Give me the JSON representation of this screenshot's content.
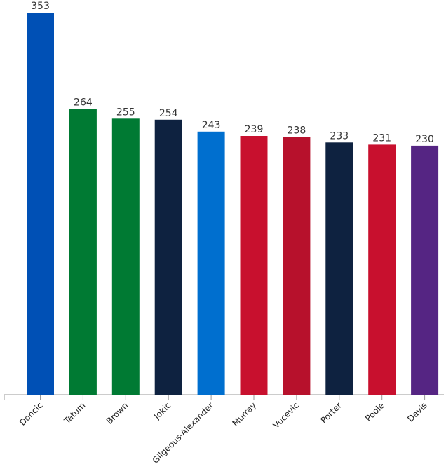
{
  "chart_data": {
    "type": "bar",
    "categories": [
      "Doncic",
      "Tatum",
      "Brown",
      "Jokic",
      "Gilgeous-Alexander",
      "Murray",
      "Vucevic",
      "Porter",
      "Poole",
      "Davis"
    ],
    "values": [
      353,
      264,
      255,
      254,
      243,
      239,
      238,
      233,
      231,
      230
    ],
    "value_labels": [
      "353",
      "264",
      "255",
      "254",
      "243",
      "239",
      "238",
      "233",
      "231",
      "230"
    ],
    "colors": [
      "#0050b5",
      "#007a33",
      "#007a33",
      "#0e2240",
      "#006fcf",
      "#c8102e",
      "#b7112c",
      "#0e2240",
      "#c8102e",
      "#552583"
    ],
    "ylim": [
      0,
      353
    ],
    "grid": false,
    "legend": "none",
    "xlabel": "",
    "ylabel": "",
    "title": ""
  }
}
